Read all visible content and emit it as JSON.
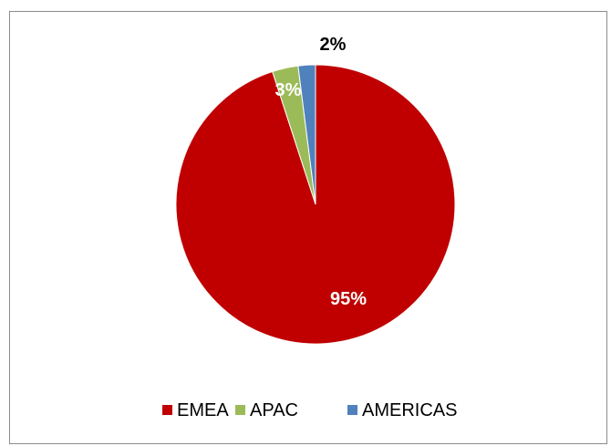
{
  "chart_data": {
    "type": "pie",
    "categories": [
      "EMEA",
      "APAC",
      "AMERICAS"
    ],
    "values": [
      95,
      3,
      2
    ],
    "data_labels": [
      "95%",
      "3%",
      "2%"
    ],
    "colors": [
      "#c00000",
      "#9bbb59",
      "#4f81bd"
    ],
    "legend_position": "bottom",
    "start_angle": "12 o'clock, clockwise"
  }
}
